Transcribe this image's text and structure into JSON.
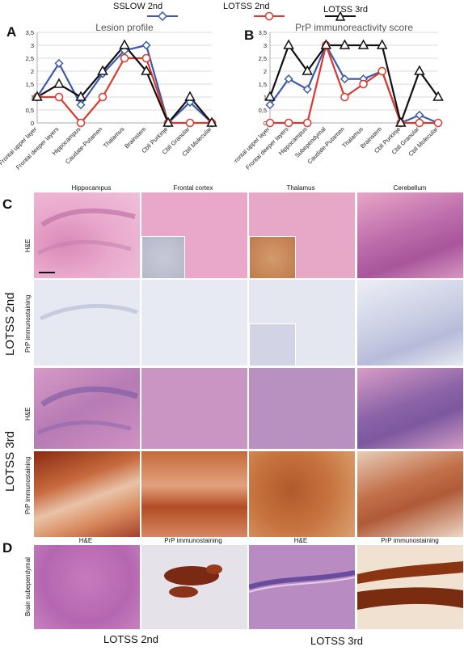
{
  "legend": [
    {
      "label": "SSLOW 2nd",
      "color": "#3b5ba8",
      "marker": "diamond"
    },
    {
      "label": "LOTSS 2nd",
      "color": "#d93a2f",
      "marker": "circle"
    },
    {
      "label": "LOTSS 3rd",
      "color": "#111111",
      "marker": "triangle"
    }
  ],
  "panel_letters": {
    "a": "A",
    "b": "B",
    "c": "C",
    "d": "D"
  },
  "chart_data": [
    {
      "type": "line",
      "title": "Lesion profile",
      "categories": [
        "Frontal upper layer",
        "Frontal deeper layers",
        "Hippocampus",
        "Caudate-Putamen",
        "Thalamus",
        "Brainstem",
        "Cbll Purkinje",
        "Cbll Granular",
        "Cbll Molecular"
      ],
      "ylim": [
        0,
        3.5
      ],
      "yticks": [
        "0",
        "0,5",
        "1",
        "1,5",
        "2",
        "2,5",
        "3",
        "3,5"
      ],
      "series": [
        {
          "name": "SSLOW 2nd",
          "values": [
            1,
            2.3,
            0.7,
            1.9,
            2.8,
            3.0,
            0,
            0.8,
            0
          ]
        },
        {
          "name": "LOTSS 2nd",
          "values": [
            1,
            1,
            0,
            1,
            2.5,
            2.5,
            0,
            0,
            0
          ]
        },
        {
          "name": "LOTSS 3rd",
          "values": [
            1,
            1.5,
            1,
            2,
            3,
            2,
            0,
            1,
            0
          ]
        }
      ]
    },
    {
      "type": "line",
      "title": "PrP immunoreactivity score",
      "categories": [
        "Frontal upper layer",
        "Frontal deeper layers",
        "Hippocampus",
        "Subependymal",
        "Caudate-Putamen",
        "Thalamus",
        "Brainstem",
        "Cbll Purkinje",
        "Cbll Granular",
        "Cbll Molecular"
      ],
      "ylim": [
        0,
        3.5
      ],
      "yticks": [
        "0",
        "0,5",
        "1",
        "1,5",
        "2",
        "2,5",
        "3",
        "3,5"
      ],
      "series": [
        {
          "name": "SSLOW 2nd",
          "values": [
            0.7,
            1.7,
            1.3,
            3,
            1.7,
            1.7,
            2,
            0,
            0.3,
            0
          ]
        },
        {
          "name": "LOTSS 2nd",
          "values": [
            0,
            0,
            0,
            3,
            1,
            1.5,
            2,
            0,
            0,
            0
          ]
        },
        {
          "name": "LOTSS 3rd",
          "values": [
            1,
            3,
            2,
            3,
            3,
            3,
            3,
            0,
            2,
            1
          ]
        }
      ]
    }
  ],
  "panel_c": {
    "columns": [
      "Hippocampus",
      "Frontal cortex",
      "Thalamus",
      "Cerebellum"
    ],
    "group1": "LOTSS 2nd",
    "group2": "LOTSS 3rd",
    "row_he": "H&E",
    "row_prp": "PrP immunostaining"
  },
  "panel_d": {
    "row_label": "Brain subependymal",
    "columns": [
      "H&E",
      "PrP immunostaining",
      "H&E",
      "PrP immunostaining"
    ],
    "group1": "LOTSS 2nd",
    "group2": "LOTSS 3rd"
  }
}
